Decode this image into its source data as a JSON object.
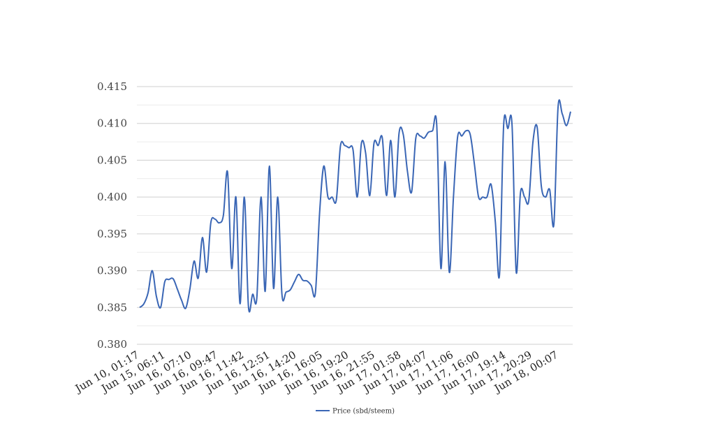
{
  "chart_data": {
    "type": "line",
    "title": "",
    "xlabel": "",
    "ylabel": "",
    "ylim": [
      0.38,
      0.415
    ],
    "y_ticks": [
      "0.380",
      "0.385",
      "0.390",
      "0.395",
      "0.400",
      "0.405",
      "0.410",
      "0.415"
    ],
    "x_tick_labels": [
      "Jun 10, 01:17",
      "Jun 15, 06:11",
      "Jun 16, 07:10",
      "Jun 16, 09:47",
      "Jun 16, 11:42",
      "Jun 16, 12:51",
      "Jun 16, 14:20",
      "Jun 16, 16:05",
      "Jun 16, 19:20",
      "Jun 16, 21:55",
      "Jun 17, 01:58",
      "Jun 17, 04:07",
      "Jun 17, 11:06",
      "Jun 17, 16:00",
      "Jun 17, 19:14",
      "Jun 17, 20:29",
      "Jun 18, 00:07"
    ],
    "grid": true,
    "legend_position": "bottom-center",
    "series": [
      {
        "name": "Price (sbd/steem)",
        "color": "#3a66b5",
        "values": [
          0.385,
          0.3855,
          0.387,
          0.39,
          0.3865,
          0.385,
          0.3885,
          0.3888,
          0.3889,
          0.3875,
          0.386,
          0.3849,
          0.3875,
          0.3913,
          0.389,
          0.3945,
          0.3898,
          0.3965,
          0.397,
          0.3965,
          0.3975,
          0.4034,
          0.3903,
          0.4,
          0.3855,
          0.4,
          0.3851,
          0.3868,
          0.3863,
          0.4,
          0.3872,
          0.4042,
          0.3876,
          0.4,
          0.3868,
          0.3871,
          0.3874,
          0.3885,
          0.3895,
          0.3887,
          0.3886,
          0.388,
          0.387,
          0.3978,
          0.4042,
          0.4,
          0.4,
          0.3996,
          0.407,
          0.407,
          0.4067,
          0.4064,
          0.4,
          0.4073,
          0.406,
          0.4002,
          0.4073,
          0.407,
          0.408,
          0.4002,
          0.4077,
          0.4,
          0.4087,
          0.4085,
          0.4035,
          0.4007,
          0.408,
          0.4083,
          0.408,
          0.4088,
          0.409,
          0.4098,
          0.3903,
          0.4048,
          0.3898,
          0.4,
          0.4082,
          0.4083,
          0.409,
          0.4085,
          0.4045,
          0.4,
          0.4,
          0.4,
          0.4017,
          0.3967,
          0.3894,
          0.4098,
          0.4093,
          0.4098,
          0.3898,
          0.4005,
          0.4,
          0.3995,
          0.4075,
          0.4095,
          0.4015,
          0.4,
          0.401,
          0.3963,
          0.4122,
          0.4113,
          0.4097,
          0.4116
        ]
      }
    ]
  }
}
